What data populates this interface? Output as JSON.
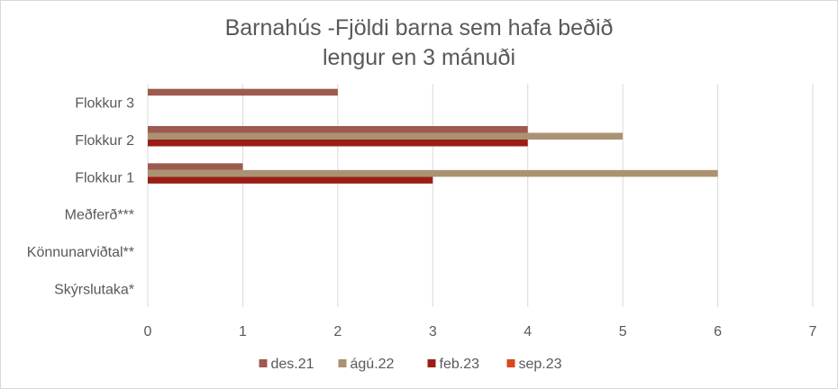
{
  "chart_data": {
    "type": "bar",
    "orientation": "horizontal",
    "title_line1": "Barnahús -Fjöldi barna sem hafa beðið",
    "title_line2": "lengur en 3 mánuði",
    "categories": [
      "Skýrslutaka*",
      "Könnunarviðtal**",
      "Meðferð***",
      "Flokkur 1",
      "Flokkur 2",
      "Flokkur 3"
    ],
    "series": [
      {
        "name": "des.21",
        "color": "#9e5a4e",
        "values": [
          0,
          0,
          0,
          1,
          4,
          2
        ]
      },
      {
        "name": "ágú.22",
        "color": "#ab9272",
        "values": [
          0,
          0,
          0,
          6,
          5,
          0
        ]
      },
      {
        "name": "feb.23",
        "color": "#9a1e15",
        "values": [
          0,
          0,
          0,
          3,
          4,
          0
        ]
      },
      {
        "name": "sep.23",
        "color": "#d9481f",
        "values": [
          0,
          0,
          0,
          0,
          0,
          0
        ]
      }
    ],
    "xlim": [
      0,
      7
    ],
    "xticks": [
      0,
      1,
      2,
      3,
      4,
      5,
      6,
      7
    ],
    "grid": true,
    "legend_position": "bottom"
  }
}
